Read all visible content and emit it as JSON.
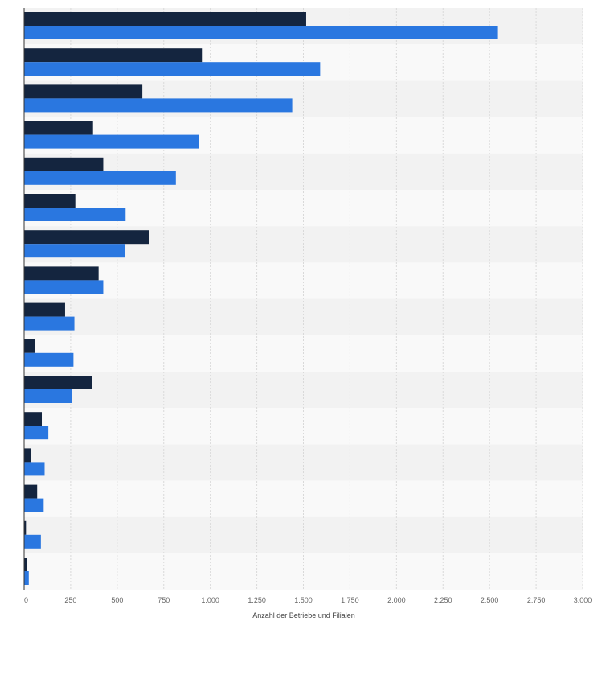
{
  "chart_data": {
    "type": "bar",
    "orientation": "horizontal",
    "title": "",
    "xlabel": "Anzahl der Betriebe und Filialen",
    "ylabel": "",
    "xlim": [
      0,
      3000
    ],
    "x_ticks": [
      0,
      250,
      500,
      750,
      1000,
      1250,
      1500,
      1750,
      2000,
      2250,
      2500,
      2750,
      3000
    ],
    "x_tick_labels": [
      "0",
      "250",
      "500",
      "750",
      "1.000",
      "1.250",
      "1.500",
      "1.750",
      "2.000",
      "2.250",
      "2.500",
      "2.750",
      "3.000"
    ],
    "grid": true,
    "legend": "none",
    "categories": [
      "",
      "",
      "",
      "",
      "",
      "",
      "",
      "",
      "",
      "",
      "",
      "",
      "",
      "",
      "",
      ""
    ],
    "series": [
      {
        "color": "#14253f",
        "values": [
          1515,
          955,
          635,
          370,
          425,
          275,
          670,
          400,
          220,
          60,
          365,
          95,
          35,
          70,
          10,
          15
        ]
      },
      {
        "color": "#2a77e0",
        "values": [
          2545,
          1590,
          1440,
          940,
          815,
          545,
          540,
          425,
          270,
          265,
          255,
          130,
          110,
          105,
          90,
          25
        ]
      }
    ]
  }
}
